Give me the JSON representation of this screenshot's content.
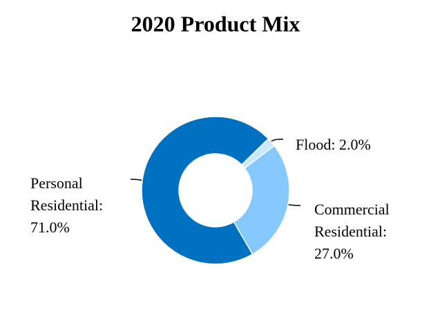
{
  "chart_data": {
    "type": "donut",
    "title": "2020 Product Mix",
    "categories": [
      "Flood",
      "Commercial Residential",
      "Personal Residential"
    ],
    "values": [
      2.0,
      27.0,
      71.0
    ],
    "labels": [
      [
        "Flood: 2.0%"
      ],
      [
        "Commercial",
        "Residential:",
        "27.0%"
      ],
      [
        "Personal",
        "Residential:",
        "71.0%"
      ]
    ],
    "colors": [
      "#c6e9fb",
      "#85c8fb",
      "#0070c0"
    ]
  }
}
